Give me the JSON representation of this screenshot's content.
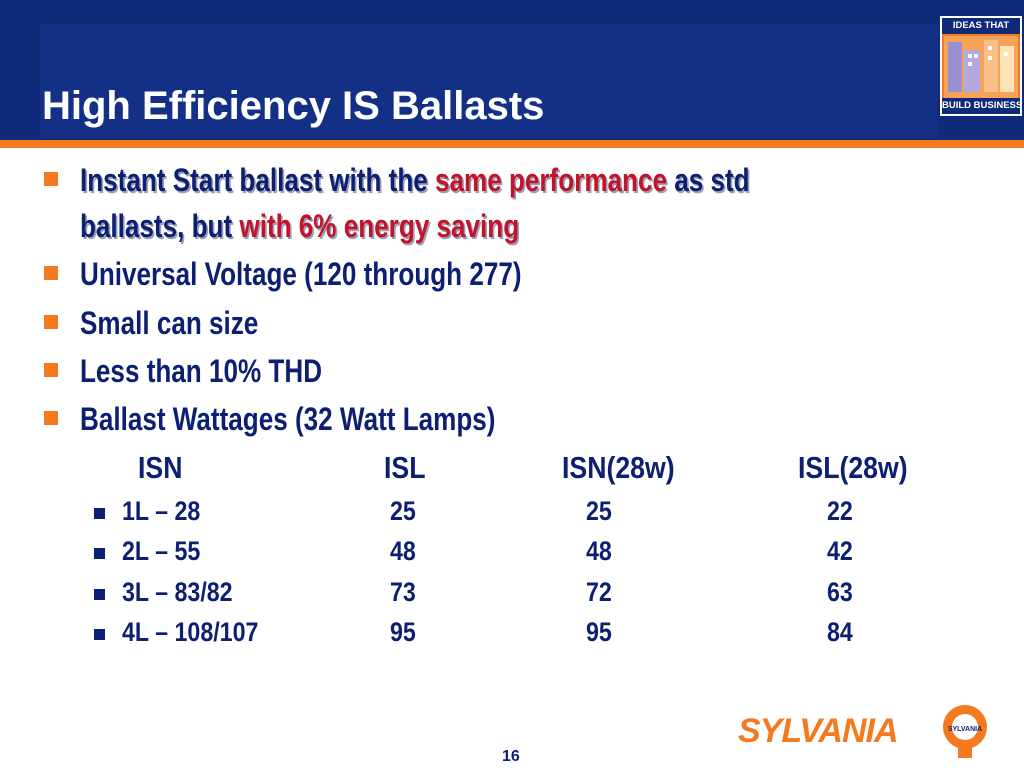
{
  "slide": {
    "title": "High Efficiency IS Ballasts",
    "badge": {
      "top_text": "IDEAS THAT",
      "bottom_text": "BUILD BUSINESS"
    },
    "bullets": [
      {
        "line1_a": "Instant Start ballast with the ",
        "line1_b": "same performance",
        "line1_c": " as std",
        "line2_a": "ballasts, but ",
        "line2_b": "with 6% energy saving"
      },
      {
        "text": "Universal Voltage (120 through 277)"
      },
      {
        "text": "Small can size"
      },
      {
        "text": "Less than 10% THD"
      },
      {
        "text": "Ballast Wattages (32 Watt Lamps)"
      }
    ],
    "table": {
      "headers": [
        "ISN",
        "ISL",
        "ISN(28w)",
        "ISL(28w)"
      ],
      "rows": [
        [
          "1L – 28",
          "25",
          "25",
          "22"
        ],
        [
          "2L – 55",
          "48",
          "48",
          "42"
        ],
        [
          "3L – 83/82",
          "73",
          "72",
          "63"
        ],
        [
          "4L – 108/107",
          "95",
          "95",
          "84"
        ]
      ]
    },
    "logo_text": "SYLVANIA",
    "logo_badge_text": "SYLVANIA",
    "page_number": "16",
    "colors": {
      "header_blue": "#0f2a79",
      "accent_orange": "#f47a20",
      "text_navy": "#0c1f73",
      "highlight_red": "#c3122a"
    }
  }
}
